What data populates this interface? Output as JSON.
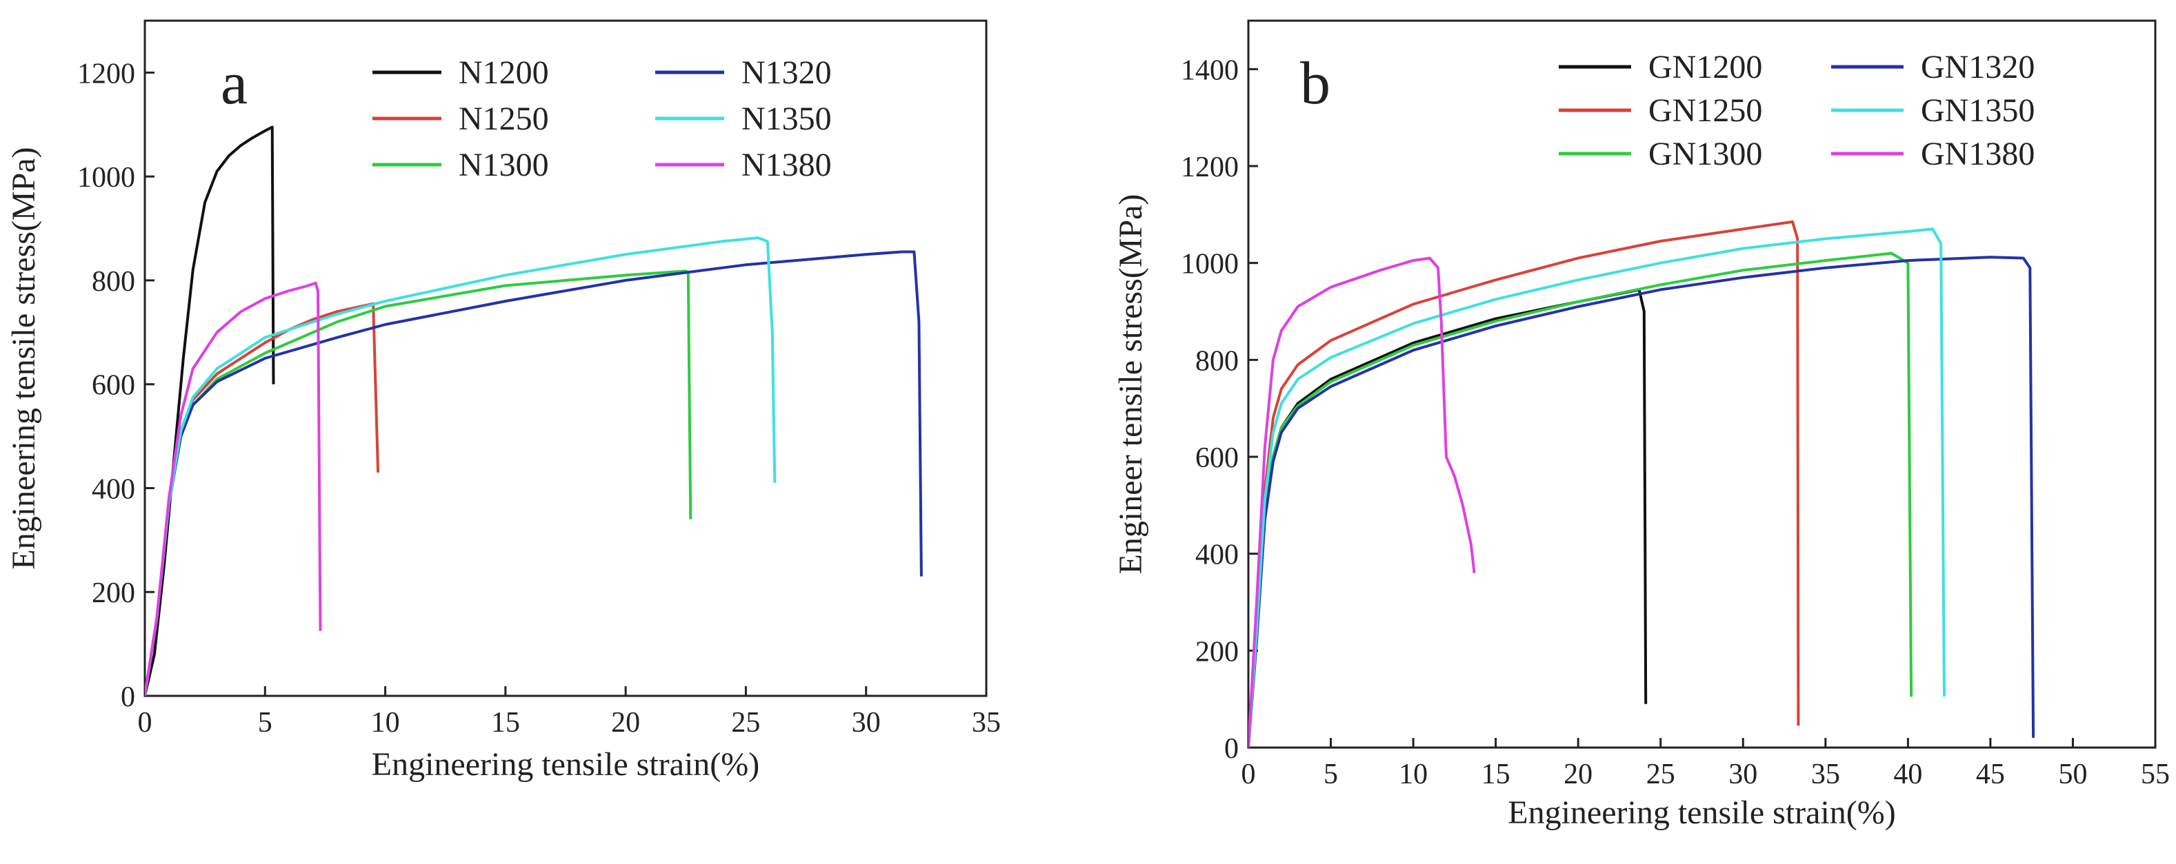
{
  "chart_data": [
    {
      "type": "line",
      "panel_label": "a",
      "xlabel": "Engineering tensile strain(%)",
      "ylabel": "Engineering tensile stress(MPa)",
      "xlim": [
        0,
        35
      ],
      "ylim": [
        0,
        1300
      ],
      "xticks": [
        0,
        5,
        10,
        15,
        20,
        25,
        30,
        35
      ],
      "yticks": [
        0,
        200,
        400,
        600,
        800,
        1000,
        1200
      ],
      "legend_columns": 2,
      "legend_placement": "top-right",
      "series": [
        {
          "name": "N1200",
          "color": "#111111",
          "points": [
            [
              0,
              0
            ],
            [
              0.4,
              80
            ],
            [
              0.8,
              250
            ],
            [
              1.2,
              450
            ],
            [
              1.6,
              650
            ],
            [
              2.0,
              820
            ],
            [
              2.5,
              950
            ],
            [
              3.0,
              1010
            ],
            [
              3.5,
              1040
            ],
            [
              4.0,
              1060
            ],
            [
              4.5,
              1075
            ],
            [
              5.0,
              1088
            ],
            [
              5.3,
              1095
            ],
            [
              5.35,
              600
            ]
          ]
        },
        {
          "name": "N1250",
          "color": "#d9423a",
          "points": [
            [
              0,
              0
            ],
            [
              0.5,
              150
            ],
            [
              1.0,
              370
            ],
            [
              1.5,
              510
            ],
            [
              2.0,
              570
            ],
            [
              3.0,
              620
            ],
            [
              4.0,
              650
            ],
            [
              5.0,
              680
            ],
            [
              6.0,
              705
            ],
            [
              7.0,
              725
            ],
            [
              8.0,
              740
            ],
            [
              9.0,
              750
            ],
            [
              9.5,
              755
            ],
            [
              9.7,
              430
            ]
          ]
        },
        {
          "name": "N1300",
          "color": "#2ecc40",
          "points": [
            [
              0,
              0
            ],
            [
              0.5,
              150
            ],
            [
              1.0,
              370
            ],
            [
              1.5,
              500
            ],
            [
              2.0,
              560
            ],
            [
              3.0,
              610
            ],
            [
              5.0,
              660
            ],
            [
              8.0,
              720
            ],
            [
              10.0,
              750
            ],
            [
              15.0,
              790
            ],
            [
              20.0,
              810
            ],
            [
              22.5,
              818
            ],
            [
              22.6,
              815
            ],
            [
              22.7,
              340
            ]
          ]
        },
        {
          "name": "N1320",
          "color": "#2432a8",
          "points": [
            [
              0,
              0
            ],
            [
              0.5,
              150
            ],
            [
              1.0,
              370
            ],
            [
              1.5,
              500
            ],
            [
              2.0,
              560
            ],
            [
              3.0,
              605
            ],
            [
              5.0,
              650
            ],
            [
              8.0,
              690
            ],
            [
              10.0,
              715
            ],
            [
              15.0,
              760
            ],
            [
              20.0,
              800
            ],
            [
              25.0,
              830
            ],
            [
              30.0,
              850
            ],
            [
              31.5,
              855
            ],
            [
              32.0,
              855
            ],
            [
              32.2,
              720
            ],
            [
              32.3,
              230
            ]
          ]
        },
        {
          "name": "N1350",
          "color": "#40e0e0",
          "points": [
            [
              0,
              0
            ],
            [
              0.5,
              150
            ],
            [
              1.0,
              370
            ],
            [
              1.5,
              510
            ],
            [
              2.0,
              575
            ],
            [
              3.0,
              630
            ],
            [
              5.0,
              690
            ],
            [
              8.0,
              735
            ],
            [
              10.0,
              760
            ],
            [
              15.0,
              810
            ],
            [
              20.0,
              850
            ],
            [
              24.0,
              875
            ],
            [
              25.5,
              882
            ],
            [
              25.9,
              875
            ],
            [
              26.1,
              700
            ],
            [
              26.2,
              410
            ]
          ]
        },
        {
          "name": "N1380",
          "color": "#e040e0",
          "points": [
            [
              0,
              0
            ],
            [
              0.5,
              150
            ],
            [
              1.0,
              380
            ],
            [
              1.5,
              540
            ],
            [
              2.0,
              630
            ],
            [
              3.0,
              700
            ],
            [
              4.0,
              740
            ],
            [
              5.0,
              765
            ],
            [
              6.0,
              780
            ],
            [
              6.8,
              790
            ],
            [
              7.1,
              795
            ],
            [
              7.2,
              780
            ],
            [
              7.3,
              125
            ]
          ]
        }
      ]
    },
    {
      "type": "line",
      "panel_label": "b",
      "xlabel": "Engineering tensile strain(%)",
      "ylabel": "Engineer tensile stress(MPa)",
      "xlim": [
        0,
        55
      ],
      "ylim": [
        0,
        1500
      ],
      "xticks": [
        0,
        5,
        10,
        15,
        20,
        25,
        30,
        35,
        40,
        45,
        50,
        55
      ],
      "yticks": [
        0,
        200,
        400,
        600,
        800,
        1000,
        1200,
        1400
      ],
      "legend_columns": 2,
      "legend_placement": "top-right",
      "series": [
        {
          "name": "GN1200",
          "color": "#111111",
          "points": [
            [
              0,
              0
            ],
            [
              0.5,
              230
            ],
            [
              1.0,
              480
            ],
            [
              1.5,
              600
            ],
            [
              2.0,
              660
            ],
            [
              3.0,
              710
            ],
            [
              5.0,
              760
            ],
            [
              10.0,
              835
            ],
            [
              15.0,
              885
            ],
            [
              20.0,
              920
            ],
            [
              23.0,
              940
            ],
            [
              23.7,
              945
            ],
            [
              24.0,
              900
            ],
            [
              24.1,
              90
            ]
          ]
        },
        {
          "name": "GN1250",
          "color": "#d9423a",
          "points": [
            [
              0,
              0
            ],
            [
              0.5,
              250
            ],
            [
              1.0,
              530
            ],
            [
              1.5,
              680
            ],
            [
              2.0,
              740
            ],
            [
              3.0,
              790
            ],
            [
              5.0,
              840
            ],
            [
              10.0,
              915
            ],
            [
              15.0,
              965
            ],
            [
              20.0,
              1010
            ],
            [
              25.0,
              1045
            ],
            [
              30.0,
              1070
            ],
            [
              33.0,
              1085
            ],
            [
              33.3,
              1050
            ],
            [
              33.35,
              45
            ]
          ]
        },
        {
          "name": "GN1300",
          "color": "#2ecc40",
          "points": [
            [
              0,
              0
            ],
            [
              0.5,
              230
            ],
            [
              1.0,
              480
            ],
            [
              1.5,
              600
            ],
            [
              2.0,
              660
            ],
            [
              3.0,
              705
            ],
            [
              5.0,
              755
            ],
            [
              10.0,
              830
            ],
            [
              15.0,
              880
            ],
            [
              20.0,
              920
            ],
            [
              25.0,
              955
            ],
            [
              30.0,
              985
            ],
            [
              35.0,
              1005
            ],
            [
              39.0,
              1020
            ],
            [
              40.0,
              1000
            ],
            [
              40.2,
              105
            ]
          ]
        },
        {
          "name": "GN1320",
          "color": "#2432a8",
          "points": [
            [
              0,
              0
            ],
            [
              0.5,
              220
            ],
            [
              1.0,
              470
            ],
            [
              1.5,
              590
            ],
            [
              2.0,
              650
            ],
            [
              3.0,
              700
            ],
            [
              5.0,
              745
            ],
            [
              10.0,
              820
            ],
            [
              15.0,
              870
            ],
            [
              20.0,
              910
            ],
            [
              25.0,
              945
            ],
            [
              30.0,
              970
            ],
            [
              35.0,
              990
            ],
            [
              40.0,
              1005
            ],
            [
              45.0,
              1012
            ],
            [
              47.0,
              1010
            ],
            [
              47.4,
              990
            ],
            [
              47.6,
              20
            ]
          ]
        },
        {
          "name": "GN1350",
          "color": "#40e0e0",
          "points": [
            [
              0,
              0
            ],
            [
              0.5,
              240
            ],
            [
              1.0,
              510
            ],
            [
              1.5,
              650
            ],
            [
              2.0,
              710
            ],
            [
              3.0,
              760
            ],
            [
              5.0,
              805
            ],
            [
              10.0,
              875
            ],
            [
              15.0,
              925
            ],
            [
              20.0,
              965
            ],
            [
              25.0,
              1000
            ],
            [
              30.0,
              1030
            ],
            [
              35.0,
              1050
            ],
            [
              40.0,
              1065
            ],
            [
              41.5,
              1070
            ],
            [
              42.0,
              1040
            ],
            [
              42.2,
              105
            ]
          ]
        },
        {
          "name": "GN1380",
          "color": "#e040e0",
          "points": [
            [
              0,
              0
            ],
            [
              0.5,
              300
            ],
            [
              1.0,
              620
            ],
            [
              1.5,
              800
            ],
            [
              2.0,
              860
            ],
            [
              3.0,
              910
            ],
            [
              5.0,
              950
            ],
            [
              8.0,
              985
            ],
            [
              10.0,
              1005
            ],
            [
              11.0,
              1010
            ],
            [
              11.5,
              990
            ],
            [
              11.7,
              880
            ],
            [
              12.0,
              600
            ],
            [
              12.5,
              560
            ],
            [
              13.0,
              500
            ],
            [
              13.5,
              420
            ],
            [
              13.7,
              360
            ]
          ]
        }
      ]
    }
  ]
}
